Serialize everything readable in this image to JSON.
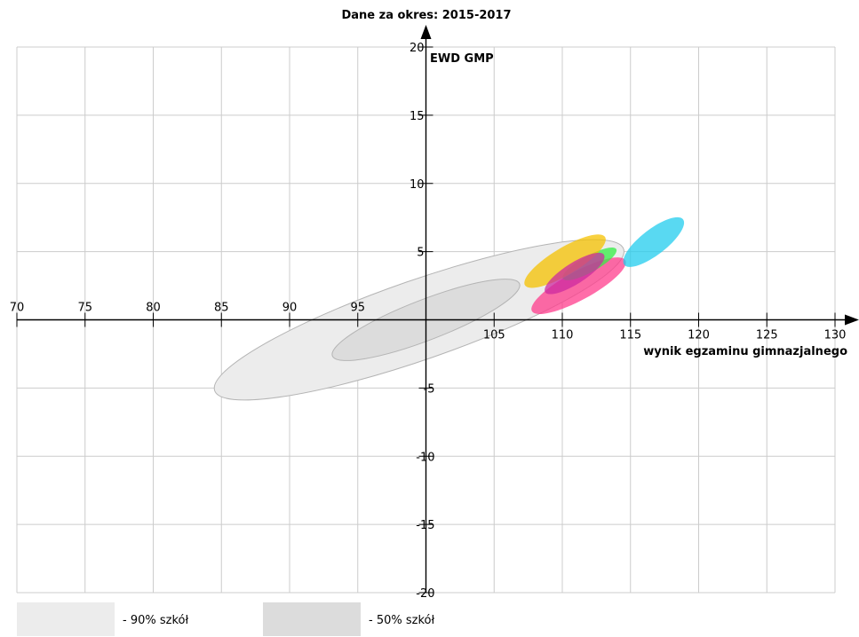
{
  "chart_data": {
    "type": "scatter",
    "title": "Dane za okres: 2015-2017",
    "xlabel": "wynik egzaminu gimnazjalnego",
    "ylabel": "EWD GMP",
    "xlim": [
      70,
      130
    ],
    "ylim": [
      -20,
      20
    ],
    "x_ticks": [
      70,
      75,
      80,
      85,
      90,
      95,
      100,
      105,
      110,
      115,
      120,
      125,
      130
    ],
    "x_tick_labels": [
      "70",
      "75",
      "80",
      "85",
      "90",
      "95",
      "",
      "105",
      "110",
      "115",
      "120",
      "125",
      "130"
    ],
    "y_ticks": [
      -20,
      -15,
      -10,
      -5,
      0,
      5,
      10,
      15,
      20
    ],
    "y_tick_labels": [
      "-20",
      "-15",
      "-10",
      "-5",
      "",
      "5",
      "10",
      "15",
      "20"
    ],
    "grid": true,
    "reference_regions": [
      {
        "name": "- 90% szkół",
        "color": "#ececec",
        "cx": 99.5,
        "cy": 0.0,
        "x_extent": 15.3,
        "y_extent": 5.3
      },
      {
        "name": "- 50% szkół",
        "color": "#dcdcdc",
        "cx": 100.0,
        "cy": 0.0,
        "x_extent": 7.0,
        "y_extent": 2.7
      }
    ],
    "series": [
      {
        "color": "#ff3c8c",
        "cx": 111.2,
        "cy": 2.5,
        "x_extent": 3.5,
        "y_extent": 1.9
      },
      {
        "color": "#33ee44",
        "cx": 112.0,
        "cy": 4.1,
        "x_extent": 2.0,
        "y_extent": 1.1
      },
      {
        "color": "#f5c200",
        "cx": 110.2,
        "cy": 4.3,
        "x_extent": 3.0,
        "y_extent": 1.8
      },
      {
        "color": "#cc2aa0",
        "cx": 110.9,
        "cy": 3.4,
        "x_extent": 2.2,
        "y_extent": 1.4
      },
      {
        "color": "#22ccee",
        "cx": 116.7,
        "cy": 5.7,
        "x_extent": 2.2,
        "y_extent": 1.7
      }
    ]
  }
}
